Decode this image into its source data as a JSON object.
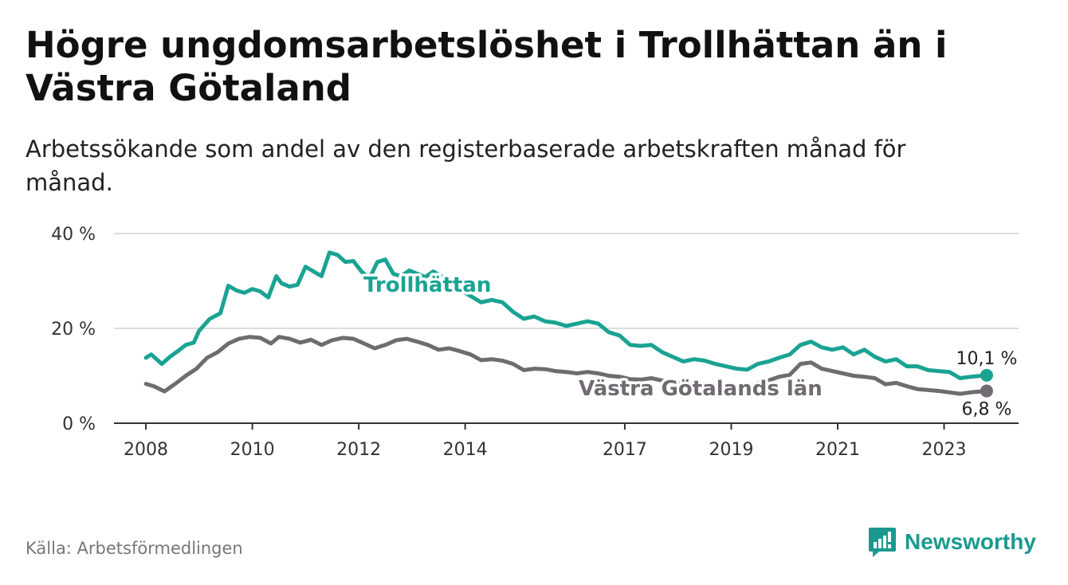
{
  "title": "Högre ungdomsarbetslöshet i Trollhättan än i Västra Götaland",
  "subtitle": "Arbetssökande som andel av den registerbaserade arbetskraften månad för månad.",
  "source": "Källa: Arbetsförmedlingen",
  "brand": "Newsworthy",
  "colors": {
    "trollhattan": "#1aa393",
    "vastra": "#6f6b70",
    "grid": "#dddddd",
    "axis": "#333333"
  },
  "chart_data": {
    "type": "line",
    "ylim": [
      0,
      40
    ],
    "xlim": [
      2007.4,
      2024.4
    ],
    "y_ticks": [
      0,
      20,
      40
    ],
    "y_tick_labels": [
      "0 %",
      "20 %",
      "40 %"
    ],
    "x_ticks": [
      2008,
      2010,
      2012,
      2014,
      2017,
      2019,
      2021,
      2023
    ],
    "x_tick_labels": [
      "2008",
      "2010",
      "2012",
      "2014",
      "2017",
      "2019",
      "2021",
      "2023"
    ],
    "series": [
      {
        "name": "Trollhättan",
        "end_label": "10,1 %",
        "x": [
          2008.0,
          2008.1,
          2008.3,
          2008.45,
          2008.6,
          2008.75,
          2008.9,
          2009.0,
          2009.2,
          2009.4,
          2009.55,
          2009.7,
          2009.85,
          2010.0,
          2010.15,
          2010.3,
          2010.45,
          2010.55,
          2010.7,
          2010.85,
          2011.0,
          2011.15,
          2011.3,
          2011.45,
          2011.6,
          2011.75,
          2011.9,
          2012.05,
          2012.2,
          2012.35,
          2012.5,
          2012.65,
          2012.8,
          2012.95,
          2013.1,
          2013.25,
          2013.4,
          2013.55,
          2013.7,
          2013.85,
          2014.0,
          2014.15,
          2014.3,
          2014.5,
          2014.7,
          2014.9,
          2015.1,
          2015.3,
          2015.5,
          2015.7,
          2015.9,
          2016.1,
          2016.3,
          2016.5,
          2016.7,
          2016.9,
          2017.1,
          2017.3,
          2017.5,
          2017.7,
          2017.9,
          2018.1,
          2018.3,
          2018.5,
          2018.7,
          2018.9,
          2019.1,
          2019.3,
          2019.5,
          2019.7,
          2019.9,
          2020.1,
          2020.3,
          2020.5,
          2020.7,
          2020.9,
          2021.1,
          2021.3,
          2021.5,
          2021.7,
          2021.9,
          2022.1,
          2022.3,
          2022.5,
          2022.7,
          2022.9,
          2023.1,
          2023.3,
          2023.5,
          2023.7,
          2023.8
        ],
        "values": [
          13.8,
          14.5,
          12.5,
          14.0,
          15.2,
          16.5,
          17.0,
          19.5,
          22.0,
          23.2,
          29.0,
          28.0,
          27.5,
          28.3,
          27.8,
          26.5,
          31.0,
          29.5,
          28.8,
          29.2,
          33.0,
          32.0,
          31.0,
          36.0,
          35.5,
          34.0,
          34.2,
          32.0,
          30.5,
          34.0,
          34.5,
          31.5,
          31.0,
          32.2,
          31.5,
          30.8,
          32.0,
          31.0,
          29.5,
          28.5,
          27.5,
          26.5,
          25.5,
          26.0,
          25.5,
          23.5,
          22.0,
          22.5,
          21.5,
          21.2,
          20.5,
          21.0,
          21.5,
          21.0,
          19.2,
          18.5,
          16.5,
          16.3,
          16.5,
          15.0,
          14.0,
          13.0,
          13.5,
          13.2,
          12.5,
          12.0,
          11.5,
          11.3,
          12.5,
          13.0,
          13.8,
          14.5,
          16.5,
          17.2,
          16.0,
          15.5,
          16.0,
          14.5,
          15.5,
          14.0,
          13.0,
          13.5,
          12.0,
          12.0,
          11.2,
          11.0,
          10.8,
          9.5,
          9.8,
          10.0,
          10.1
        ]
      },
      {
        "name": "Västra Götalands län",
        "end_label": "6,8 %",
        "x": [
          2008.0,
          2008.15,
          2008.35,
          2008.55,
          2008.75,
          2008.95,
          2009.15,
          2009.35,
          2009.55,
          2009.75,
          2009.95,
          2010.15,
          2010.35,
          2010.5,
          2010.7,
          2010.9,
          2011.1,
          2011.3,
          2011.5,
          2011.7,
          2011.9,
          2012.1,
          2012.3,
          2012.5,
          2012.7,
          2012.9,
          2013.1,
          2013.3,
          2013.5,
          2013.7,
          2013.9,
          2014.1,
          2014.3,
          2014.5,
          2014.7,
          2014.9,
          2015.1,
          2015.3,
          2015.5,
          2015.7,
          2015.9,
          2016.1,
          2016.3,
          2016.5,
          2016.7,
          2016.9,
          2017.1,
          2017.3,
          2017.5,
          2017.7,
          2017.9,
          2018.1,
          2018.3,
          2018.5,
          2018.7,
          2018.9,
          2019.1,
          2019.3,
          2019.5,
          2019.7,
          2019.9,
          2020.1,
          2020.3,
          2020.5,
          2020.7,
          2020.9,
          2021.1,
          2021.3,
          2021.5,
          2021.7,
          2021.9,
          2022.1,
          2022.3,
          2022.5,
          2022.7,
          2022.9,
          2023.1,
          2023.3,
          2023.5,
          2023.7,
          2023.8
        ],
        "values": [
          8.3,
          7.8,
          6.7,
          8.3,
          10.0,
          11.5,
          13.8,
          15.0,
          16.8,
          17.8,
          18.2,
          18.0,
          16.8,
          18.2,
          17.8,
          17.0,
          17.6,
          16.5,
          17.5,
          18.0,
          17.8,
          16.8,
          15.8,
          16.5,
          17.5,
          17.8,
          17.2,
          16.5,
          15.5,
          15.8,
          15.2,
          14.5,
          13.3,
          13.5,
          13.2,
          12.5,
          11.2,
          11.5,
          11.4,
          11.0,
          10.8,
          10.5,
          10.8,
          10.5,
          10.0,
          9.8,
          9.3,
          9.2,
          9.5,
          9.0,
          8.5,
          8.3,
          8.5,
          8.2,
          7.8,
          7.6,
          7.2,
          7.3,
          8.5,
          9.0,
          9.8,
          10.2,
          12.5,
          12.8,
          11.5,
          11.0,
          10.5,
          10.0,
          9.8,
          9.5,
          8.2,
          8.5,
          7.8,
          7.2,
          7.0,
          6.8,
          6.5,
          6.2,
          6.5,
          6.7,
          6.8
        ]
      }
    ],
    "series_labels": [
      "Trollhättan",
      "Västra Götalands län"
    ]
  }
}
